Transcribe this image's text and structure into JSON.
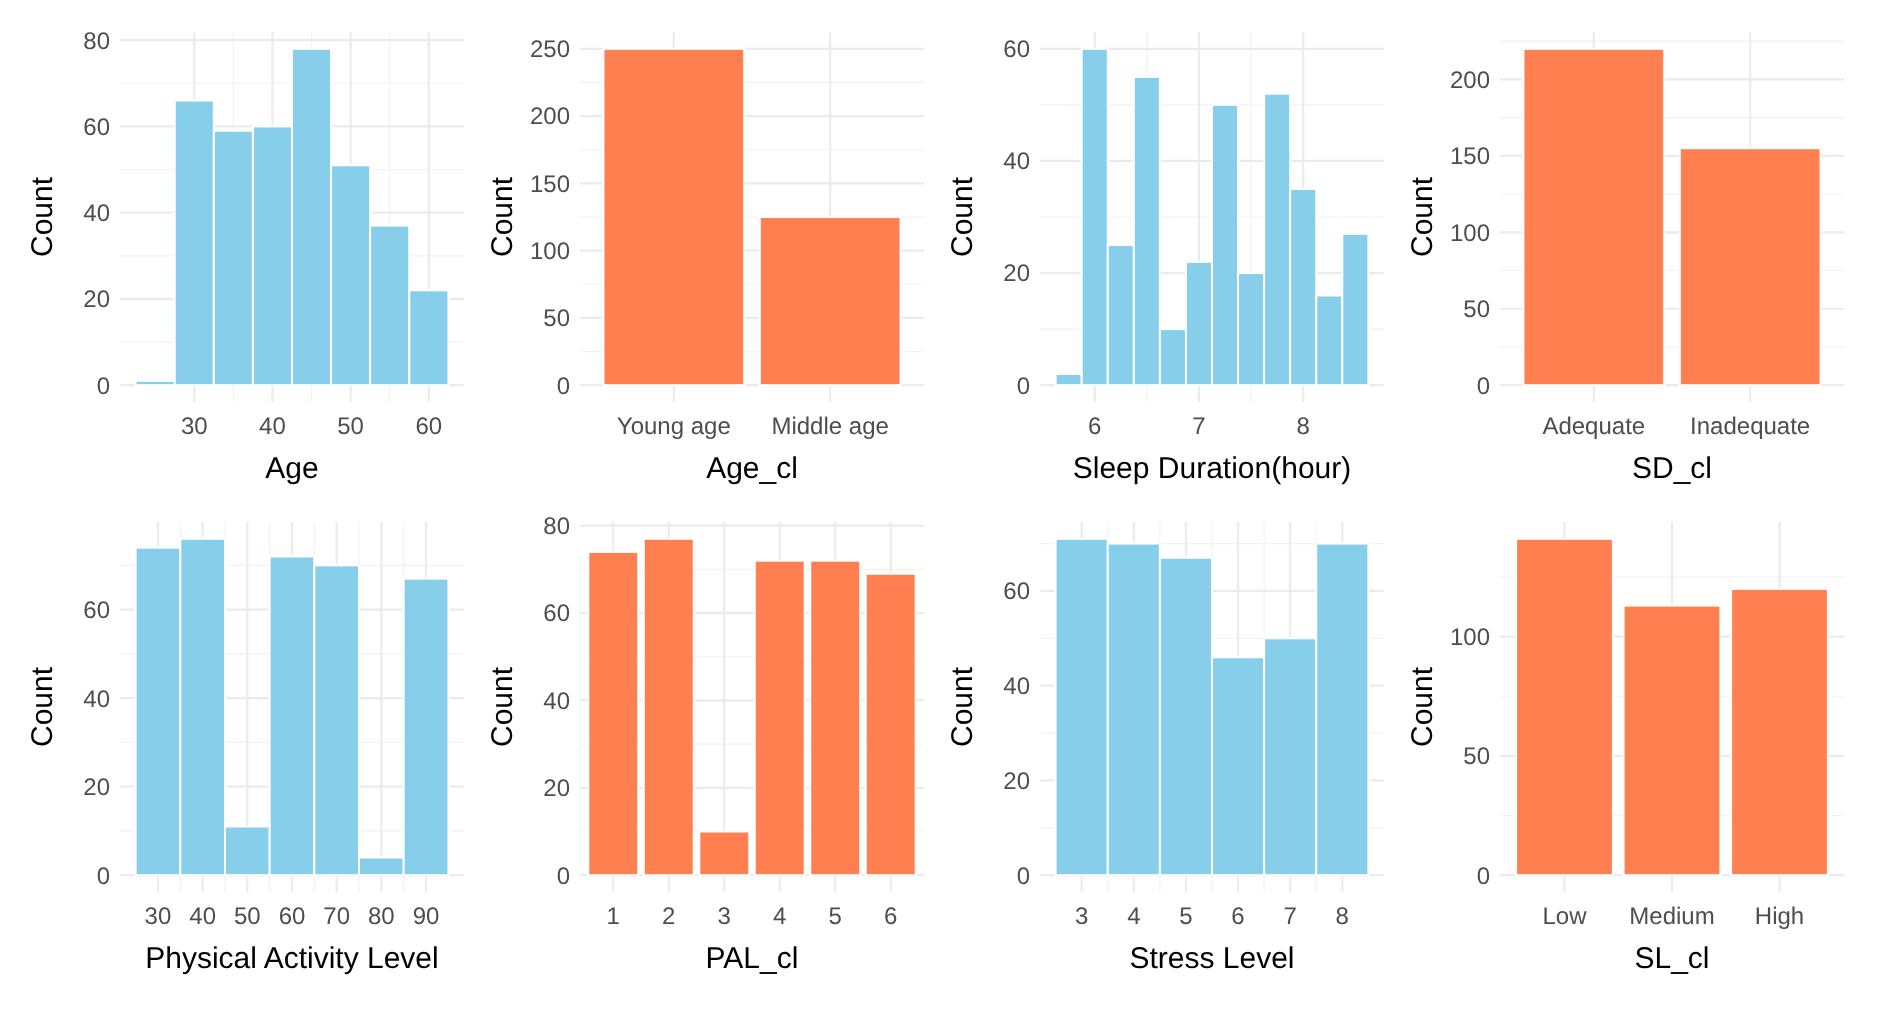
{
  "chart_data": [
    {
      "type": "histogram",
      "xlabel": "Age",
      "ylabel": "Count",
      "color": "#87ceeb",
      "bins": [
        22.5,
        27.5,
        32.5,
        37.5,
        42.5,
        47.5,
        52.5,
        57.5,
        62.5
      ],
      "values": [
        1,
        66,
        59,
        60,
        78,
        51,
        37,
        22
      ],
      "xlim": [
        20.5,
        64.5
      ],
      "xticks": [
        30,
        40,
        50,
        60
      ],
      "ylim": [
        -3.9,
        81.9
      ],
      "yticks": [
        0,
        20,
        40,
        60,
        80
      ],
      "grid": true
    },
    {
      "type": "bar",
      "xlabel": "Age_cl",
      "ylabel": "Count",
      "color": "#ff7f50",
      "categories": [
        "Young age",
        "Middle age"
      ],
      "values": [
        250,
        125
      ],
      "ylim": [
        -12.5,
        262.5
      ],
      "yticks": [
        0,
        50,
        100,
        150,
        200,
        250
      ],
      "grid": true
    },
    {
      "type": "histogram",
      "xlabel": "Sleep Duration(hour)",
      "ylabel": "Count",
      "color": "#87ceeb",
      "bins": [
        5.625,
        5.875,
        6.125,
        6.375,
        6.625,
        6.875,
        7.125,
        7.375,
        7.625,
        7.875,
        8.125,
        8.375,
        8.625
      ],
      "values": [
        2,
        60,
        25,
        55,
        10,
        22,
        50,
        20,
        52,
        35,
        16,
        27
      ],
      "xlim": [
        5.475,
        8.775
      ],
      "xticks": [
        6,
        7,
        8
      ],
      "ylim": [
        -3,
        63
      ],
      "yticks": [
        0,
        20,
        40,
        60
      ],
      "grid": true
    },
    {
      "type": "bar",
      "xlabel": "SD_cl",
      "ylabel": "Count",
      "color": "#ff7f50",
      "categories": [
        "Adequate",
        "Inadequate"
      ],
      "values": [
        220,
        155
      ],
      "ylim": [
        -11,
        231
      ],
      "yticks": [
        0,
        50,
        100,
        150,
        200
      ],
      "grid": true
    },
    {
      "type": "histogram",
      "xlabel": "Physical Activity Level",
      "ylabel": "Count",
      "color": "#87ceeb",
      "bins": [
        25,
        35,
        45,
        55,
        65,
        75,
        85,
        95
      ],
      "values": [
        74,
        76,
        11,
        72,
        70,
        4,
        67
      ],
      "xlim": [
        21.5,
        98.5
      ],
      "xticks": [
        30,
        40,
        50,
        60,
        70,
        80,
        90
      ],
      "ylim": [
        -3.8,
        79.8
      ],
      "yticks": [
        0,
        20,
        40,
        60
      ],
      "grid": true
    },
    {
      "type": "bar",
      "xlabel": "PAL_cl",
      "ylabel": "Count",
      "color": "#ff7f50",
      "categories": [
        "1",
        "2",
        "3",
        "4",
        "5",
        "6"
      ],
      "values": [
        74,
        77,
        10,
        72,
        72,
        69
      ],
      "ylim": [
        -3.85,
        80.85
      ],
      "yticks": [
        0,
        20,
        40,
        60,
        80
      ],
      "grid": true
    },
    {
      "type": "histogram",
      "xlabel": "Stress Level",
      "ylabel": "Count",
      "color": "#87ceeb",
      "bins": [
        2.5,
        3.5,
        4.5,
        5.5,
        6.5,
        7.5,
        8.5
      ],
      "values": [
        71,
        70,
        67,
        46,
        50,
        70
      ],
      "xlim": [
        2.2,
        8.8
      ],
      "xticks": [
        3,
        4,
        5,
        6,
        7,
        8
      ],
      "ylim": [
        -3.55,
        74.55
      ],
      "yticks": [
        0,
        20,
        40,
        60
      ],
      "grid": true
    },
    {
      "type": "bar",
      "xlabel": "SL_cl",
      "ylabel": "Count",
      "color": "#ff7f50",
      "categories": [
        "Low",
        "Medium",
        "High"
      ],
      "values": [
        141,
        113,
        120
      ],
      "ylim": [
        -7.05,
        148.05
      ],
      "yticks": [
        0,
        50,
        100
      ],
      "grid": true
    }
  ]
}
